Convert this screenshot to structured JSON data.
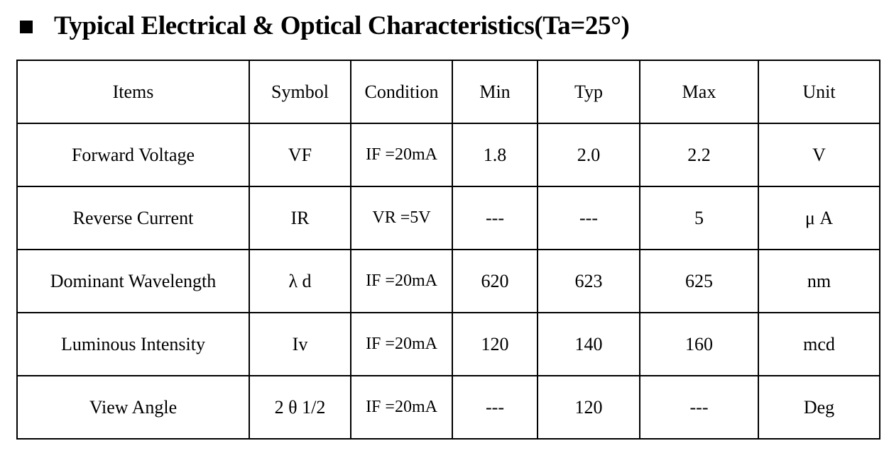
{
  "heading": {
    "bullet_icon": "square-bullet-icon",
    "title": "Typical Electrical & Optical Characteristics(Ta=25°)"
  },
  "table": {
    "headers": [
      "Items",
      "Symbol",
      "Condition",
      "Min",
      "Typ",
      "Max",
      "Unit"
    ],
    "rows": [
      {
        "item": "Forward Voltage",
        "symbol": "VF",
        "condition": "IF =20mA",
        "min": "1.8",
        "typ": "2.0",
        "max": "2.2",
        "unit": "V"
      },
      {
        "item": "Reverse Current",
        "symbol": "IR",
        "condition": "VR =5V",
        "min": "---",
        "typ": "---",
        "max": "5",
        "unit": "μ A"
      },
      {
        "item": "Dominant Wavelength",
        "symbol": "λ d",
        "condition": "IF =20mA",
        "min": "620",
        "typ": "623",
        "max": "625",
        "unit": "nm"
      },
      {
        "item": "Luminous Intensity",
        "symbol": "Iv",
        "condition": "IF =20mA",
        "min": "120",
        "typ": "140",
        "max": "160",
        "unit": "mcd"
      },
      {
        "item": "View Angle",
        "symbol": "2 θ 1/2",
        "condition": "IF =20mA",
        "min": "---",
        "typ": "120",
        "max": "---",
        "unit": "Deg"
      }
    ]
  }
}
